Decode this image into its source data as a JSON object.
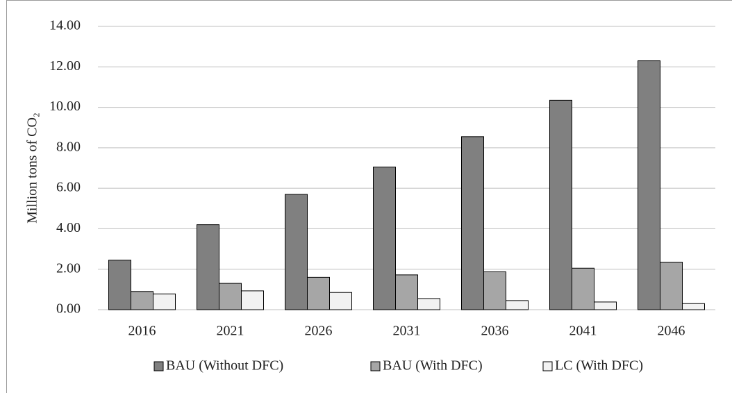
{
  "chart_data": {
    "type": "bar",
    "y_label": "Million  tons of CO₂",
    "categories": [
      "2016",
      "2021",
      "2026",
      "2031",
      "2036",
      "2041",
      "2046"
    ],
    "series": [
      {
        "name": "BAU (Without DFC)",
        "color": "#808080",
        "values": [
          2.45,
          4.2,
          5.7,
          7.05,
          8.55,
          10.35,
          12.3
        ]
      },
      {
        "name": "BAU (With DFC)",
        "color": "#a6a6a6",
        "values": [
          0.9,
          1.3,
          1.6,
          1.72,
          1.87,
          2.05,
          2.35
        ]
      },
      {
        "name": "LC (With DFC)",
        "color": "#f2f2f2",
        "values": [
          0.78,
          0.93,
          0.85,
          0.55,
          0.45,
          0.38,
          0.3
        ]
      }
    ],
    "ylim": [
      0,
      14
    ],
    "yticks": [
      {
        "value": 0,
        "label": "0.00"
      },
      {
        "value": 2,
        "label": "2.00"
      },
      {
        "value": 4,
        "label": "4.00"
      },
      {
        "value": 6,
        "label": "6.00"
      },
      {
        "value": 8,
        "label": "8.00"
      },
      {
        "value": 10,
        "label": "10.00"
      },
      {
        "value": 12,
        "label": "12.00"
      },
      {
        "value": 14,
        "label": "14.00"
      }
    ],
    "grid": true,
    "legend": "bottom"
  }
}
